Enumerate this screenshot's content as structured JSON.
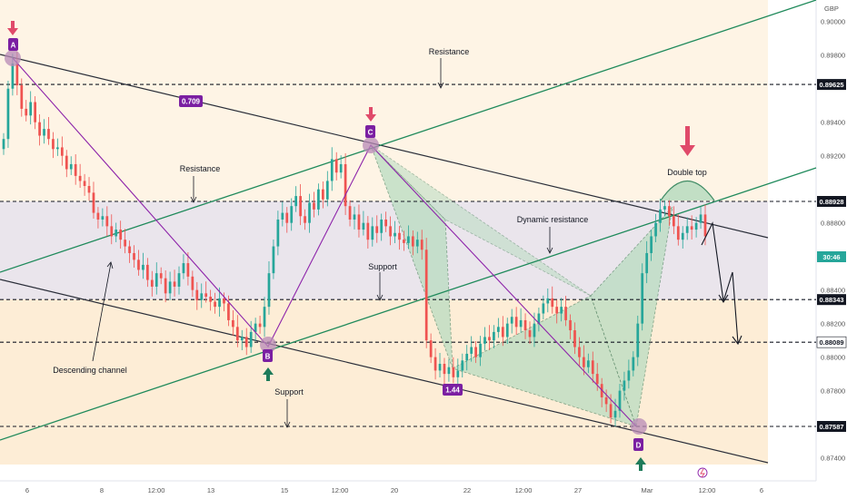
{
  "chart_data": {
    "type": "candlestick",
    "currency": "GBP",
    "y_axis": {
      "min": 0.873,
      "max": 0.901,
      "ticks": [
        "0.90000",
        "0.89800",
        "0.89400",
        "0.89200",
        "0.88800",
        "0.88600",
        "0.88400",
        "0.88200",
        "0.88000",
        "0.87800",
        "0.87400"
      ],
      "tick_values": [
        0.9,
        0.898,
        0.894,
        0.892,
        0.888,
        0.886,
        0.884,
        0.882,
        0.88,
        0.878,
        0.874
      ]
    },
    "x_axis": {
      "ticks": [
        "6",
        "8",
        "12:00",
        "13",
        "15",
        "12:00",
        "20",
        "22",
        "12:00",
        "27",
        "Mar",
        "12:00",
        "6"
      ]
    },
    "price_levels": [
      {
        "label": "0.89625",
        "value": 0.89625,
        "style": "dark"
      },
      {
        "label": "0.88928",
        "value": 0.88928,
        "style": "dark"
      },
      {
        "label": "0.88343",
        "value": 0.88343,
        "style": "dark"
      },
      {
        "label": "0.88089",
        "value": 0.88089,
        "style": "white"
      },
      {
        "label": "0.87587",
        "value": 0.87587,
        "style": "dark"
      }
    ],
    "current_price_tag": "30:46",
    "pattern_points": [
      {
        "label": "A",
        "x": 0.0,
        "y": 0.8978
      },
      {
        "label": "B",
        "x": 0.335,
        "y": 0.8804
      },
      {
        "label": "C",
        "x": 0.465,
        "y": 0.8926
      },
      {
        "label": "D",
        "x": 0.8,
        "y": 0.8757
      }
    ],
    "ratios": [
      "0.709",
      "1.44"
    ],
    "annotations": [
      "Resistance",
      "Resistance",
      "Dynamic resistance",
      "Support",
      "Descending channel",
      "Support",
      "Double top"
    ],
    "candles_close": [
      0.893,
      0.896,
      0.8975,
      0.8962,
      0.8948,
      0.8944,
      0.8952,
      0.894,
      0.8932,
      0.8936,
      0.893,
      0.8924,
      0.8925,
      0.892,
      0.8912,
      0.8915,
      0.8908,
      0.8905,
      0.8902,
      0.8898,
      0.8886,
      0.8882,
      0.8884,
      0.8878,
      0.8872,
      0.8876,
      0.887,
      0.8866,
      0.8862,
      0.8858,
      0.8852,
      0.8855,
      0.8846,
      0.8842,
      0.885,
      0.8847,
      0.8838,
      0.8845,
      0.8842,
      0.885,
      0.8856,
      0.8848,
      0.884,
      0.8834,
      0.8838,
      0.8836,
      0.8833,
      0.883,
      0.8835,
      0.8832,
      0.8822,
      0.8818,
      0.881,
      0.8812,
      0.8806,
      0.8815,
      0.882,
      0.8818,
      0.883,
      0.885,
      0.8866,
      0.8882,
      0.8886,
      0.888,
      0.889,
      0.8896,
      0.8884,
      0.888,
      0.8892,
      0.8888,
      0.89,
      0.8894,
      0.8905,
      0.8918,
      0.891,
      0.8915,
      0.889,
      0.8882,
      0.8885,
      0.8876,
      0.888,
      0.887,
      0.8878,
      0.8874,
      0.8882,
      0.8878,
      0.8872,
      0.8874,
      0.887,
      0.8868,
      0.8872,
      0.8866,
      0.887,
      0.8864,
      0.881,
      0.88,
      0.8792,
      0.8796,
      0.879,
      0.8794,
      0.8788,
      0.8792,
      0.8798,
      0.8802,
      0.8806,
      0.88,
      0.8808,
      0.8812,
      0.881,
      0.8815,
      0.8818,
      0.8812,
      0.882,
      0.8824,
      0.8818,
      0.8822,
      0.8816,
      0.8812,
      0.882,
      0.8826,
      0.8832,
      0.8835,
      0.883,
      0.8826,
      0.883,
      0.8822,
      0.8816,
      0.8806,
      0.88,
      0.8794,
      0.8798,
      0.879,
      0.8784,
      0.8776,
      0.8772,
      0.8764,
      0.8768,
      0.878,
      0.8786,
      0.8792,
      0.88,
      0.882,
      0.885,
      0.8862,
      0.8872,
      0.888,
      0.8888,
      0.889,
      0.8884,
      0.8878,
      0.887,
      0.8874,
      0.8878,
      0.8876,
      0.888,
      0.8885,
      0.8872
    ]
  },
  "labels": {
    "currency": "GBP",
    "resistance_top": "Resistance",
    "resistance_left": "Resistance",
    "dynamic_resistance": "Dynamic resistance",
    "support_mid": "Support",
    "descending_channel": "Descending channel",
    "support_bottom": "Support",
    "double_top": "Double top",
    "ratio_1": "0.709",
    "ratio_2": "1.44",
    "point_a": "A",
    "point_b": "B",
    "point_c": "C",
    "point_d": "D",
    "current_tag": "30:46"
  },
  "colors": {
    "bull": "#26a69a",
    "bear": "#ef5350",
    "green_line": "#1f8a5b",
    "channel_line": "#2a2e39",
    "pattern_line": "#8e24aa",
    "point_fill": "#7b1fa2",
    "arrow_red": "#e04a6a",
    "arrow_green": "#1e7b5a",
    "zone_orange": "#fde7c8",
    "zone_grey": "#e7e0e8",
    "harmonic_fill": "#a8d5b5"
  }
}
